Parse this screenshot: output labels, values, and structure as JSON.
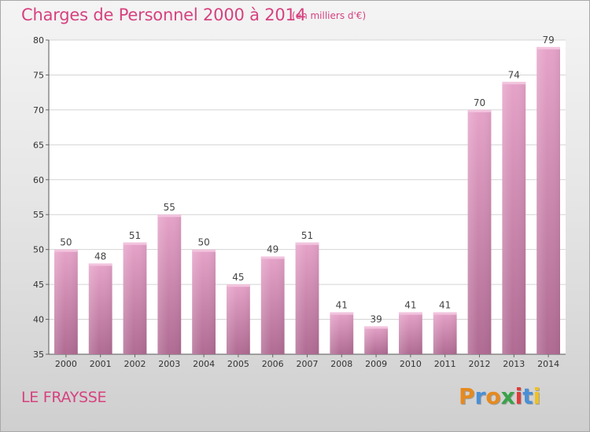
{
  "chart_data": {
    "type": "bar",
    "title": "Charges de Personnel 2000 à 2014",
    "subtitle": "(en milliers d'€)",
    "categories": [
      "2000",
      "2001",
      "2002",
      "2003",
      "2004",
      "2005",
      "2006",
      "2007",
      "2008",
      "2009",
      "2010",
      "2011",
      "2012",
      "2013",
      "2014"
    ],
    "values": [
      50,
      48,
      51,
      55,
      50,
      45,
      49,
      51,
      41,
      39,
      41,
      41,
      70,
      74,
      79
    ],
    "ylim": [
      35,
      80
    ],
    "yticks": [
      35,
      40,
      45,
      50,
      55,
      60,
      65,
      70,
      75,
      80
    ],
    "grid": true,
    "bar_color": "#e6a3c9",
    "bar_color_dark": "#b06b93"
  },
  "footer": {
    "location": "LE FRAYSSE",
    "logo_letters": [
      "P",
      "r",
      "o",
      "x",
      "i",
      "t",
      "i"
    ],
    "logo_colors": [
      "#e58a1f",
      "#4a8fd6",
      "#e58a1f",
      "#3aa24a",
      "#e03b3b",
      "#4a8fd6",
      "#f0c020"
    ]
  }
}
